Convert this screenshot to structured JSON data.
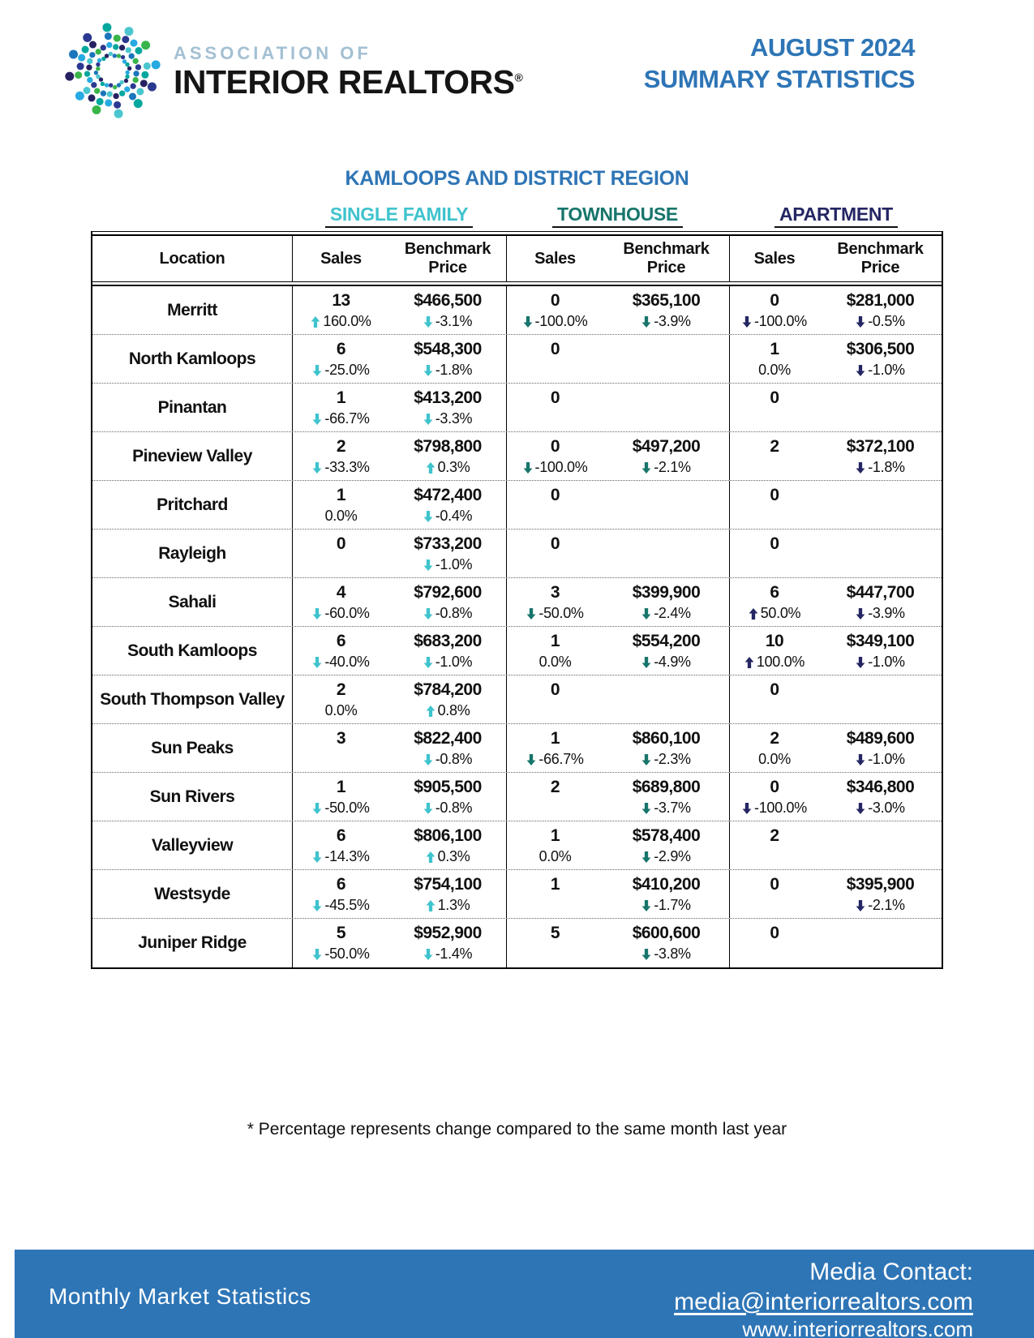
{
  "header": {
    "logo_top": "ASSOCIATION OF",
    "logo_bottom": "INTERIOR REALTORS",
    "registered": "®",
    "title_line1": "AUGUST 2024",
    "title_line2": "SUMMARY STATISTICS"
  },
  "region_title": "KAMLOOPS AND DISTRICT REGION",
  "table": {
    "groups": [
      "SINGLE FAMILY",
      "TOWNHOUSE",
      "APARTMENT"
    ],
    "headers": {
      "location": "Location",
      "sales": "Sales",
      "benchmark_line1": "Benchmark",
      "benchmark_line2": "Price"
    },
    "rows": [
      {
        "loc": "Merritt",
        "cells": [
          {
            "v": "13",
            "p": "160.0%",
            "d": "up"
          },
          {
            "v": "$466,500",
            "p": "-3.1%",
            "d": "down"
          },
          {
            "v": "0",
            "p": "-100.0%",
            "d": "down"
          },
          {
            "v": "$365,100",
            "p": "-3.9%",
            "d": "down"
          },
          {
            "v": "0",
            "p": "-100.0%",
            "d": "down"
          },
          {
            "v": "$281,000",
            "p": "-0.5%",
            "d": "down"
          }
        ]
      },
      {
        "loc": "North Kamloops",
        "cells": [
          {
            "v": "6",
            "p": "-25.0%",
            "d": "down"
          },
          {
            "v": "$548,300",
            "p": "-1.8%",
            "d": "down"
          },
          {
            "v": "0",
            "p": "",
            "d": "none"
          },
          {
            "v": "",
            "p": "",
            "d": "none"
          },
          {
            "v": "1",
            "p": "0.0%",
            "d": "none"
          },
          {
            "v": "$306,500",
            "p": "-1.0%",
            "d": "down"
          }
        ]
      },
      {
        "loc": "Pinantan",
        "cells": [
          {
            "v": "1",
            "p": "-66.7%",
            "d": "down"
          },
          {
            "v": "$413,200",
            "p": "-3.3%",
            "d": "down"
          },
          {
            "v": "0",
            "p": "",
            "d": "none"
          },
          {
            "v": "",
            "p": "",
            "d": "none"
          },
          {
            "v": "0",
            "p": "",
            "d": "none"
          },
          {
            "v": "",
            "p": "",
            "d": "none"
          }
        ]
      },
      {
        "loc": "Pineview Valley",
        "cells": [
          {
            "v": "2",
            "p": "-33.3%",
            "d": "down"
          },
          {
            "v": "$798,800",
            "p": "0.3%",
            "d": "up"
          },
          {
            "v": "0",
            "p": "-100.0%",
            "d": "down"
          },
          {
            "v": "$497,200",
            "p": "-2.1%",
            "d": "down"
          },
          {
            "v": "2",
            "p": "",
            "d": "none"
          },
          {
            "v": "$372,100",
            "p": "-1.8%",
            "d": "down"
          }
        ]
      },
      {
        "loc": "Pritchard",
        "cells": [
          {
            "v": "1",
            "p": "0.0%",
            "d": "none"
          },
          {
            "v": "$472,400",
            "p": "-0.4%",
            "d": "down"
          },
          {
            "v": "0",
            "p": "",
            "d": "none"
          },
          {
            "v": "",
            "p": "",
            "d": "none"
          },
          {
            "v": "0",
            "p": "",
            "d": "none"
          },
          {
            "v": "",
            "p": "",
            "d": "none"
          }
        ]
      },
      {
        "loc": "Rayleigh",
        "cells": [
          {
            "v": "0",
            "p": "",
            "d": "none"
          },
          {
            "v": "$733,200",
            "p": "-1.0%",
            "d": "down"
          },
          {
            "v": "0",
            "p": "",
            "d": "none"
          },
          {
            "v": "",
            "p": "",
            "d": "none"
          },
          {
            "v": "0",
            "p": "",
            "d": "none"
          },
          {
            "v": "",
            "p": "",
            "d": "none"
          }
        ]
      },
      {
        "loc": "Sahali",
        "cells": [
          {
            "v": "4",
            "p": "-60.0%",
            "d": "down"
          },
          {
            "v": "$792,600",
            "p": "-0.8%",
            "d": "down"
          },
          {
            "v": "3",
            "p": "-50.0%",
            "d": "down"
          },
          {
            "v": "$399,900",
            "p": "-2.4%",
            "d": "down"
          },
          {
            "v": "6",
            "p": "50.0%",
            "d": "up"
          },
          {
            "v": "$447,700",
            "p": "-3.9%",
            "d": "down"
          }
        ]
      },
      {
        "loc": "South Kamloops",
        "cells": [
          {
            "v": "6",
            "p": "-40.0%",
            "d": "down"
          },
          {
            "v": "$683,200",
            "p": "-1.0%",
            "d": "down"
          },
          {
            "v": "1",
            "p": "0.0%",
            "d": "none"
          },
          {
            "v": "$554,200",
            "p": "-4.9%",
            "d": "down"
          },
          {
            "v": "10",
            "p": "100.0%",
            "d": "up"
          },
          {
            "v": "$349,100",
            "p": "-1.0%",
            "d": "down"
          }
        ]
      },
      {
        "loc": "South Thompson Valley",
        "cells": [
          {
            "v": "2",
            "p": "0.0%",
            "d": "none"
          },
          {
            "v": "$784,200",
            "p": "0.8%",
            "d": "up"
          },
          {
            "v": "0",
            "p": "",
            "d": "none"
          },
          {
            "v": "",
            "p": "",
            "d": "none"
          },
          {
            "v": "0",
            "p": "",
            "d": "none"
          },
          {
            "v": "",
            "p": "",
            "d": "none"
          }
        ]
      },
      {
        "loc": "Sun Peaks",
        "cells": [
          {
            "v": "3",
            "p": "",
            "d": "none"
          },
          {
            "v": "$822,400",
            "p": "-0.8%",
            "d": "down"
          },
          {
            "v": "1",
            "p": "-66.7%",
            "d": "down"
          },
          {
            "v": "$860,100",
            "p": "-2.3%",
            "d": "down"
          },
          {
            "v": "2",
            "p": "0.0%",
            "d": "none"
          },
          {
            "v": "$489,600",
            "p": "-1.0%",
            "d": "down"
          }
        ]
      },
      {
        "loc": "Sun Rivers",
        "cells": [
          {
            "v": "1",
            "p": "-50.0%",
            "d": "down"
          },
          {
            "v": "$905,500",
            "p": "-0.8%",
            "d": "down"
          },
          {
            "v": "2",
            "p": "",
            "d": "none"
          },
          {
            "v": "$689,800",
            "p": "-3.7%",
            "d": "down"
          },
          {
            "v": "0",
            "p": "-100.0%",
            "d": "down"
          },
          {
            "v": "$346,800",
            "p": "-3.0%",
            "d": "down"
          }
        ]
      },
      {
        "loc": "Valleyview",
        "cells": [
          {
            "v": "6",
            "p": "-14.3%",
            "d": "down"
          },
          {
            "v": "$806,100",
            "p": "0.3%",
            "d": "up"
          },
          {
            "v": "1",
            "p": "0.0%",
            "d": "none"
          },
          {
            "v": "$578,400",
            "p": "-2.9%",
            "d": "down"
          },
          {
            "v": "2",
            "p": "",
            "d": "none"
          },
          {
            "v": "",
            "p": "",
            "d": "none"
          }
        ]
      },
      {
        "loc": "Westsyde",
        "cells": [
          {
            "v": "6",
            "p": "-45.5%",
            "d": "down"
          },
          {
            "v": "$754,100",
            "p": "1.3%",
            "d": "up"
          },
          {
            "v": "1",
            "p": "",
            "d": "none"
          },
          {
            "v": "$410,200",
            "p": "-1.7%",
            "d": "down"
          },
          {
            "v": "0",
            "p": "",
            "d": "none"
          },
          {
            "v": "$395,900",
            "p": "-2.1%",
            "d": "down"
          }
        ]
      },
      {
        "loc": "Juniper Ridge",
        "cells": [
          {
            "v": "5",
            "p": "-50.0%",
            "d": "down"
          },
          {
            "v": "$952,900",
            "p": "-1.4%",
            "d": "down"
          },
          {
            "v": "5",
            "p": "",
            "d": "none"
          },
          {
            "v": "$600,600",
            "p": "-3.8%",
            "d": "down"
          },
          {
            "v": "0",
            "p": "",
            "d": "none"
          },
          {
            "v": "",
            "p": "",
            "d": "none"
          }
        ]
      }
    ]
  },
  "footnote": "* Percentage represents change compared to the same month last year",
  "footer": {
    "left": "Monthly Market Statistics",
    "media_contact": "Media Contact:",
    "email": "media@interiorrealtors.com",
    "website": "www.interiorrealtors.com"
  },
  "colors": {
    "accent_blue": "#2E75B6",
    "sf": "#3FC3CD",
    "th": "#17756B",
    "apt": "#252663",
    "logo_light_blue": "#A3C0D3",
    "logo_palette": [
      "#27AAE1",
      "#1B75BC",
      "#00A79D",
      "#39B54A",
      "#262262",
      "#2B3990",
      "#4BC6CF"
    ]
  }
}
